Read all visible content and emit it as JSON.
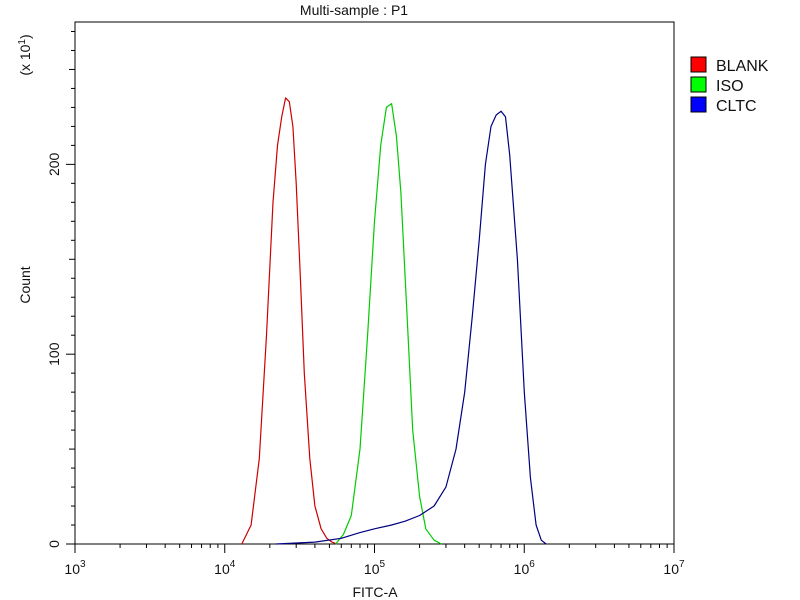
{
  "chart_data": {
    "type": "line",
    "title": "Multi-sample : P1",
    "xlabel": "FITC-A",
    "ylabel": "Count",
    "y_multiplier_label": "(x 10",
    "y_multiplier_exp": "1",
    "x_scale": "log",
    "xlim": [
      1000,
      10000000
    ],
    "ylim": [
      0,
      275
    ],
    "x_ticks": [
      {
        "mantissa": "10",
        "exp": "3",
        "value": 1000
      },
      {
        "mantissa": "10",
        "exp": "4",
        "value": 10000
      },
      {
        "mantissa": "10",
        "exp": "5",
        "value": 100000
      },
      {
        "mantissa": "10",
        "exp": "6",
        "value": 1000000
      },
      {
        "mantissa": "10",
        "exp": "7",
        "value": 10000000
      }
    ],
    "y_ticks": [
      {
        "label": "0",
        "value": 0
      },
      {
        "label": "100",
        "value": 100
      },
      {
        "label": "200",
        "value": 200
      }
    ],
    "legend_position": "right",
    "series": [
      {
        "name": "BLANK",
        "color": "#cc0000",
        "legend_color": "#ff0000",
        "x": [
          13000,
          15000,
          17000,
          19000,
          21000,
          22500,
          24000,
          25500,
          27000,
          28500,
          30000,
          32000,
          34000,
          37000,
          40000,
          44000,
          48000,
          52000,
          56000
        ],
        "y": [
          0,
          10,
          45,
          110,
          180,
          210,
          225,
          235,
          233,
          220,
          190,
          140,
          90,
          45,
          20,
          8,
          3,
          1,
          0
        ]
      },
      {
        "name": "ISO",
        "color": "#00cc00",
        "legend_color": "#00ff00",
        "x": [
          55000,
          62000,
          70000,
          80000,
          90000,
          100000,
          110000,
          120000,
          130000,
          140000,
          150000,
          165000,
          180000,
          200000,
          220000,
          250000,
          280000
        ],
        "y": [
          0,
          5,
          15,
          50,
          110,
          170,
          210,
          230,
          232,
          215,
          185,
          120,
          60,
          25,
          8,
          2,
          0
        ]
      },
      {
        "name": "CLTC",
        "color": "#000080",
        "legend_color": "#0000ff",
        "x": [
          22000,
          40000,
          60000,
          80000,
          100000,
          130000,
          160000,
          200000,
          250000,
          300000,
          350000,
          400000,
          450000,
          500000,
          550000,
          600000,
          650000,
          700000,
          750000,
          800000,
          900000,
          1000000,
          1100000,
          1200000,
          1300000,
          1400000
        ],
        "y": [
          0,
          1,
          3,
          6,
          8,
          10,
          12,
          15,
          20,
          30,
          50,
          80,
          120,
          160,
          200,
          220,
          226,
          228,
          225,
          205,
          150,
          80,
          35,
          10,
          2,
          0
        ]
      }
    ]
  }
}
